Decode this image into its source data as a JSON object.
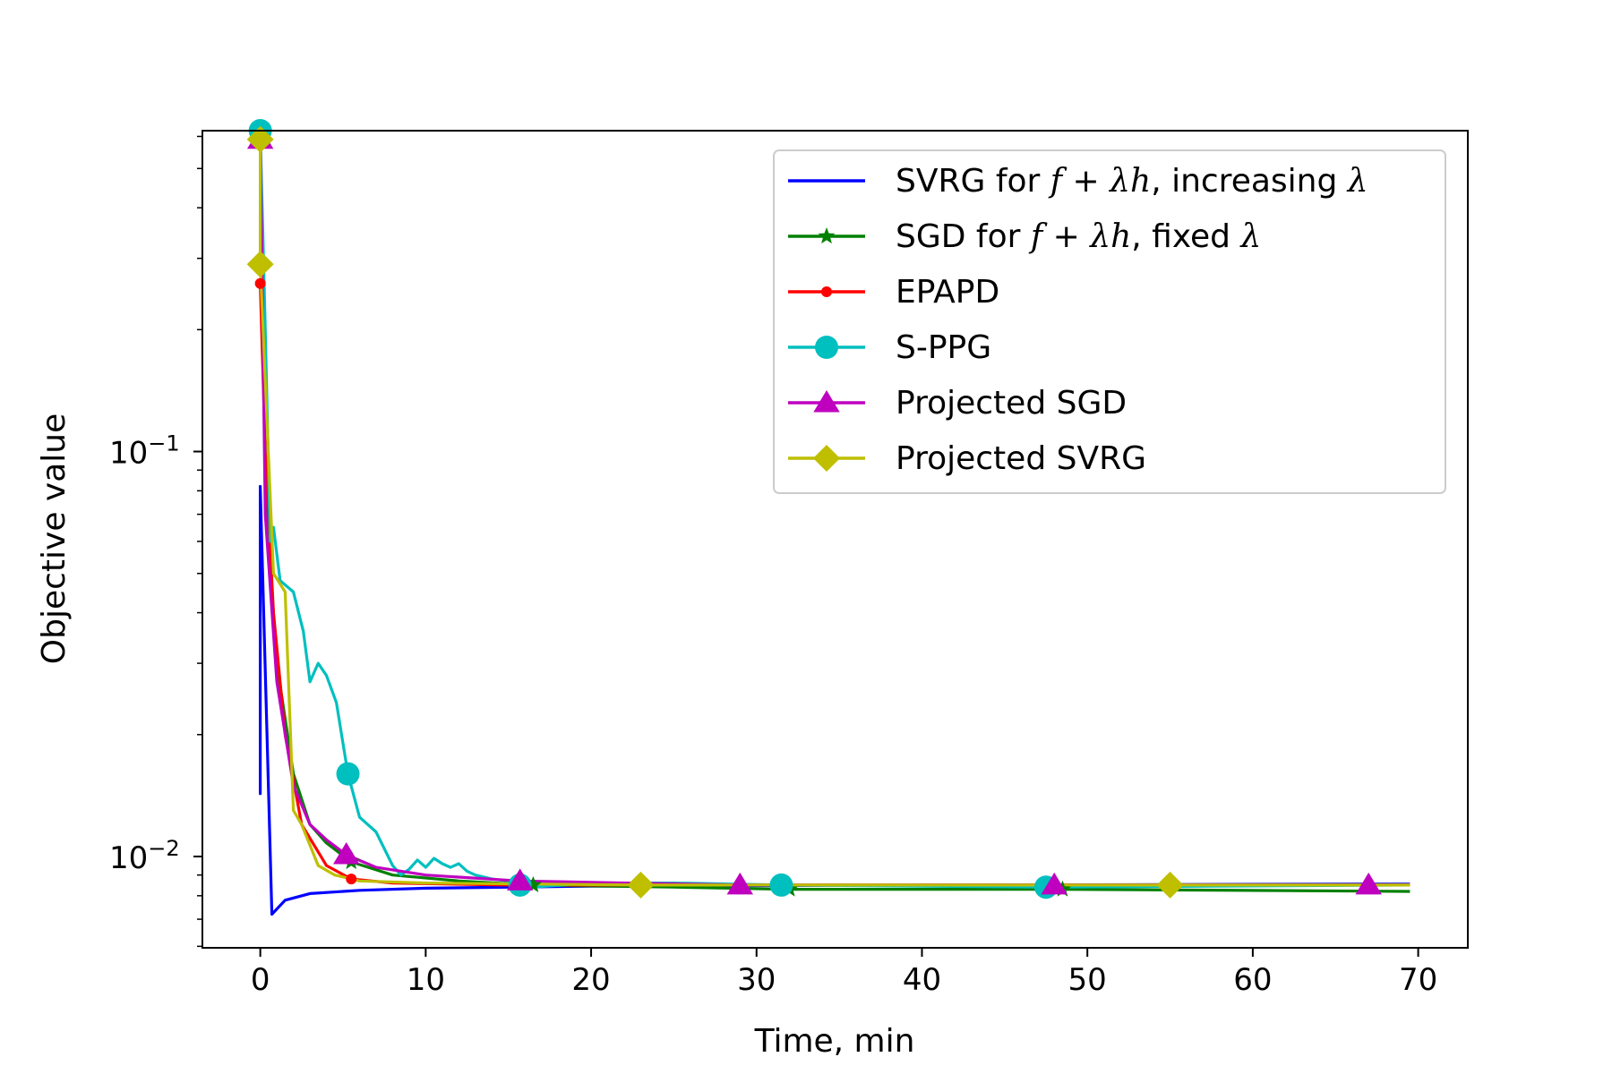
{
  "chart_data": {
    "type": "line",
    "xlabel": "Time, min",
    "ylabel": "Objective value",
    "yscale": "log",
    "xlim": [
      -3.5,
      73
    ],
    "ylim": [
      0.00595,
      0.62
    ],
    "grid": false,
    "legend_position": "top-right",
    "xticks": [
      0,
      10,
      20,
      30,
      40,
      50,
      60,
      70
    ],
    "xtick_labels": [
      "0",
      "10",
      "20",
      "30",
      "40",
      "50",
      "60",
      "70"
    ],
    "yticks": [
      0.1,
      0.01
    ],
    "ytick_base": "10",
    "ytick_exponents": [
      "−1",
      "−2"
    ],
    "series": [
      {
        "name": "SVRG for f + λh, increasing λ",
        "legend": {
          "pre": "SVRG for ",
          "f": "f",
          "plus": " + ",
          "lam": "λ",
          "h": "h",
          "post": ", increasing ",
          "lam2": "λ"
        },
        "color": "#0000ff",
        "marker": "none",
        "points": [
          [
            0,
            0.082
          ],
          [
            0,
            0.0143
          ],
          [
            0,
            0.082
          ],
          [
            0.7,
            0.0072
          ],
          [
            1.5,
            0.0078
          ],
          [
            3,
            0.0081
          ],
          [
            6,
            0.00825
          ],
          [
            10,
            0.00835
          ],
          [
            20,
            0.00845
          ],
          [
            40,
            0.0085
          ],
          [
            69.5,
            0.00855
          ]
        ],
        "markers": []
      },
      {
        "name": "SGD for f + λh, fixed λ",
        "legend": {
          "pre": "SGD for ",
          "f": "f",
          "plus": " + ",
          "lam": "λ",
          "h": "h",
          "post": ", fixed ",
          "lam2": "λ"
        },
        "color": "#008000",
        "marker": "star",
        "points": [
          [
            0,
            0.6
          ],
          [
            0.3,
            0.08
          ],
          [
            1,
            0.03
          ],
          [
            2,
            0.016
          ],
          [
            3,
            0.012
          ],
          [
            4,
            0.0108
          ],
          [
            5.5,
            0.0097
          ],
          [
            8,
            0.009
          ],
          [
            12,
            0.0087
          ],
          [
            16.5,
            0.0085
          ],
          [
            25,
            0.0084
          ],
          [
            32,
            0.0083
          ],
          [
            48.5,
            0.0083
          ],
          [
            69.5,
            0.0082
          ]
        ],
        "markers": [
          [
            0,
            0.6
          ],
          [
            5.5,
            0.0097
          ],
          [
            16.5,
            0.0085
          ],
          [
            32,
            0.0083
          ],
          [
            48.5,
            0.0083
          ]
        ]
      },
      {
        "name": "EPAPD",
        "color": "#ff0000",
        "marker": "dot",
        "points": [
          [
            0,
            0.26
          ],
          [
            0.3,
            0.1
          ],
          [
            0.8,
            0.04
          ],
          [
            1.5,
            0.02
          ],
          [
            2.5,
            0.012
          ],
          [
            4,
            0.0095
          ],
          [
            5.5,
            0.0088
          ],
          [
            8,
            0.0086
          ],
          [
            15,
            0.0085
          ],
          [
            30,
            0.0085
          ],
          [
            69.5,
            0.0085
          ]
        ],
        "markers": [
          [
            0,
            0.26
          ],
          [
            5.5,
            0.0088
          ]
        ]
      },
      {
        "name": "S-PPG",
        "color": "#00bfbf",
        "marker": "circle",
        "points": [
          [
            0,
            0.62
          ],
          [
            0.3,
            0.2
          ],
          [
            0.6,
            0.06
          ],
          [
            0.8,
            0.065
          ],
          [
            1.2,
            0.048
          ],
          [
            2,
            0.045
          ],
          [
            2.6,
            0.036
          ],
          [
            3,
            0.027
          ],
          [
            3.5,
            0.03
          ],
          [
            4,
            0.028
          ],
          [
            4.6,
            0.024
          ],
          [
            5.3,
            0.016
          ],
          [
            6,
            0.0125
          ],
          [
            7,
            0.0115
          ],
          [
            8,
            0.0095
          ],
          [
            8.5,
            0.009
          ],
          [
            9,
            0.0093
          ],
          [
            9.5,
            0.0098
          ],
          [
            10,
            0.0094
          ],
          [
            10.5,
            0.0099
          ],
          [
            11,
            0.0096
          ],
          [
            11.5,
            0.0094
          ],
          [
            12,
            0.0096
          ],
          [
            12.5,
            0.0092
          ],
          [
            13,
            0.009
          ],
          [
            14,
            0.0088
          ],
          [
            15,
            0.0087
          ],
          [
            15.7,
            0.0085
          ],
          [
            16.5,
            0.0084
          ],
          [
            20,
            0.0086
          ],
          [
            25,
            0.0086
          ],
          [
            31.5,
            0.0085
          ],
          [
            47.5,
            0.0084
          ],
          [
            69.5,
            0.0085
          ]
        ],
        "markers": [
          [
            0,
            0.62
          ],
          [
            5.3,
            0.016
          ],
          [
            15.7,
            0.0085
          ],
          [
            31.5,
            0.0085
          ],
          [
            47.5,
            0.0084
          ]
        ]
      },
      {
        "name": "Projected SGD",
        "color": "#bf00bf",
        "marker": "triangle",
        "points": [
          [
            0,
            0.59
          ],
          [
            0.3,
            0.07
          ],
          [
            1,
            0.027
          ],
          [
            2,
            0.015
          ],
          [
            3,
            0.012
          ],
          [
            4,
            0.011
          ],
          [
            5.2,
            0.0101
          ],
          [
            7,
            0.0094
          ],
          [
            10,
            0.009
          ],
          [
            15.7,
            0.0087
          ],
          [
            22,
            0.0086
          ],
          [
            29,
            0.0085
          ],
          [
            48,
            0.0085
          ],
          [
            67,
            0.0085
          ],
          [
            69.5,
            0.0085
          ]
        ],
        "markers": [
          [
            0,
            0.59
          ],
          [
            5.2,
            0.0101
          ],
          [
            15.7,
            0.0087
          ],
          [
            29,
            0.0085
          ],
          [
            48,
            0.0085
          ],
          [
            67,
            0.0085
          ]
        ]
      },
      {
        "name": "Projected SVRG",
        "color": "#bfbf00",
        "marker": "diamond",
        "points": [
          [
            0,
            0.59
          ],
          [
            0,
            0.29
          ],
          [
            0.3,
            0.15
          ],
          [
            0.8,
            0.05
          ],
          [
            1.5,
            0.045
          ],
          [
            2,
            0.013
          ],
          [
            2.5,
            0.012
          ],
          [
            3.5,
            0.0095
          ],
          [
            4.5,
            0.009
          ],
          [
            6,
            0.0087
          ],
          [
            10,
            0.0086
          ],
          [
            23,
            0.0085
          ],
          [
            55,
            0.0085
          ],
          [
            69.5,
            0.0085
          ]
        ],
        "markers": [
          [
            0,
            0.59
          ],
          [
            0,
            0.29
          ],
          [
            23,
            0.0085
          ],
          [
            55,
            0.0085
          ]
        ]
      }
    ]
  }
}
